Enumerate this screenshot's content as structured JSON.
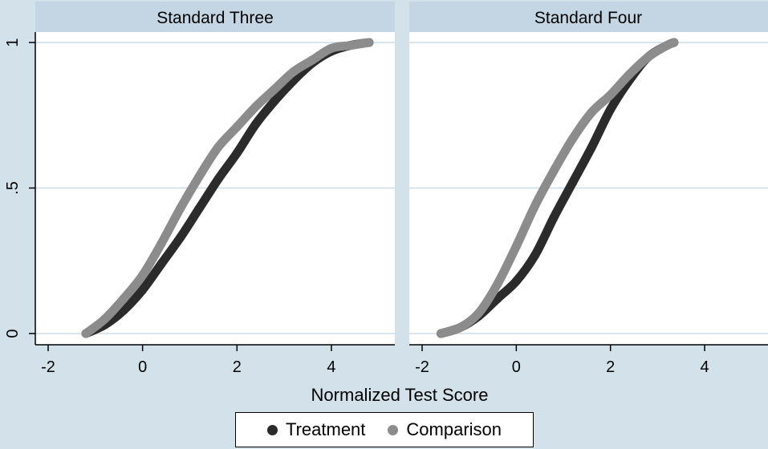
{
  "chart_data": {
    "type": "line",
    "facet_titles": [
      "Standard Three",
      "Standard Four"
    ],
    "xlabel": "Normalized Test Score",
    "ylabel": "",
    "x_ticks": [
      "-2",
      "0",
      "2",
      "4"
    ],
    "y_ticks": [
      "0",
      ".5",
      "1"
    ],
    "xlim": [
      -2,
      4.8
    ],
    "ylim": [
      0,
      1
    ],
    "grid": "horizontal",
    "legend_position": "bottom",
    "colors": {
      "Treatment": "#2b2b2b",
      "Comparison": "#8c8c8c"
    },
    "panels": [
      {
        "title": "Standard Three",
        "series": [
          {
            "name": "Treatment",
            "x": [
              -1.2,
              -0.8,
              -0.4,
              0.0,
              0.4,
              0.8,
              1.2,
              1.6,
              2.0,
              2.4,
              2.8,
              3.2,
              3.6,
              4.0,
              4.4,
              4.8
            ],
            "y": [
              0.0,
              0.03,
              0.08,
              0.15,
              0.24,
              0.33,
              0.43,
              0.53,
              0.62,
              0.72,
              0.8,
              0.87,
              0.93,
              0.97,
              0.99,
              1.0
            ]
          },
          {
            "name": "Comparison",
            "x": [
              -1.2,
              -0.8,
              -0.4,
              0.0,
              0.4,
              0.8,
              1.2,
              1.6,
              2.0,
              2.4,
              2.8,
              3.2,
              3.6,
              4.0,
              4.4,
              4.8
            ],
            "y": [
              0.0,
              0.05,
              0.12,
              0.2,
              0.31,
              0.43,
              0.54,
              0.64,
              0.71,
              0.78,
              0.84,
              0.9,
              0.94,
              0.98,
              0.99,
              1.0
            ]
          }
        ]
      },
      {
        "title": "Standard Four",
        "series": [
          {
            "name": "Treatment",
            "x": [
              -1.6,
              -1.2,
              -0.8,
              -0.4,
              0.0,
              0.4,
              0.8,
              1.2,
              1.6,
              2.0,
              2.4,
              2.8,
              3.2,
              3.35
            ],
            "y": [
              0.0,
              0.02,
              0.06,
              0.12,
              0.18,
              0.27,
              0.4,
              0.52,
              0.64,
              0.77,
              0.87,
              0.95,
              0.99,
              1.0
            ]
          },
          {
            "name": "Comparison",
            "x": [
              -1.6,
              -1.2,
              -0.8,
              -0.4,
              0.0,
              0.4,
              0.8,
              1.2,
              1.6,
              2.0,
              2.4,
              2.8,
              3.2,
              3.35
            ],
            "y": [
              0.0,
              0.02,
              0.07,
              0.17,
              0.3,
              0.44,
              0.56,
              0.67,
              0.76,
              0.82,
              0.89,
              0.95,
              0.99,
              1.0
            ]
          }
        ]
      }
    ]
  }
}
